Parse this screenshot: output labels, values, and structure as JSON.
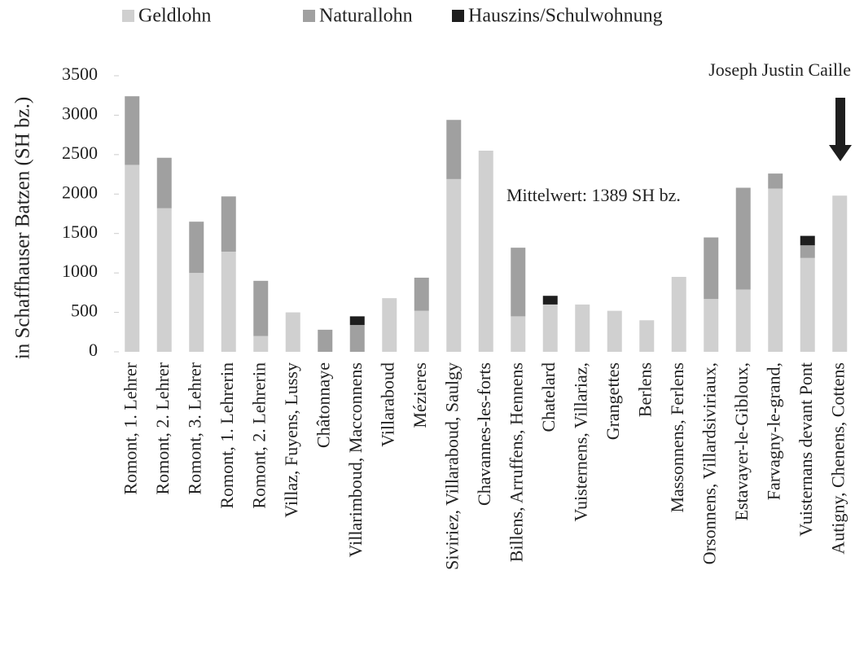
{
  "chart_data": {
    "type": "stacked_bar",
    "ylabel": "in Schaffhauser Batzen (SH bz.)",
    "annotations": [
      "Mittelwert: 1389 SH bz.",
      "Joseph Justin Caille"
    ],
    "categories": [
      "Romont, 1. Lehrer",
      "Romont, 2. Lehrer",
      "Romont, 3. Lehrer",
      "Romont, 1. Lehrerin",
      "Romont, 2. Lehrerin",
      "Villaz, Fuyens, Lussy",
      "Châtonnaye",
      "Villarimboud, Macconnens",
      "Villaraboud",
      "Mézieres",
      "Siviriez, Villaraboud, Saulgy",
      "Chavannes-les-forts",
      "Billens, Arruffens, Hennens",
      "Chatelard",
      "Vuisternens, Villariaz,",
      "Grangettes",
      "Berlens",
      "Massonnens, Ferlens",
      "Orsonnens, Villardsiviriaux,",
      "Estavayer-le-Gibloux,",
      "Farvagny-le-grand,",
      "Vuisternans devant Pont",
      "Autigny, Chenens, Cottens"
    ],
    "series": [
      {
        "name": "Geldlohn",
        "color": "#d0d0d0",
        "values": [
          2370,
          1820,
          1000,
          1270,
          200,
          500,
          null,
          null,
          680,
          520,
          2190,
          2550,
          450,
          600,
          600,
          520,
          400,
          950,
          670,
          790,
          2070,
          1190,
          1980
        ]
      },
      {
        "name": "Naturallohn",
        "color": "#a0a0a0",
        "values": [
          870,
          640,
          650,
          700,
          700,
          null,
          280,
          340,
          null,
          420,
          750,
          null,
          870,
          null,
          null,
          null,
          null,
          null,
          780,
          1290,
          190,
          160,
          null
        ]
      },
      {
        "name": "Hauszins/Schulwohnung",
        "color": "#1e1e1e",
        "values": [
          null,
          null,
          null,
          null,
          null,
          null,
          null,
          110,
          null,
          null,
          null,
          null,
          null,
          110,
          null,
          null,
          null,
          null,
          null,
          null,
          null,
          120,
          null
        ]
      }
    ],
    "ylim": [
      0,
      3500
    ],
    "yticks": [
      0,
      500,
      1000,
      1500,
      2000,
      2500,
      3000,
      3500
    ],
    "grid": false
  }
}
